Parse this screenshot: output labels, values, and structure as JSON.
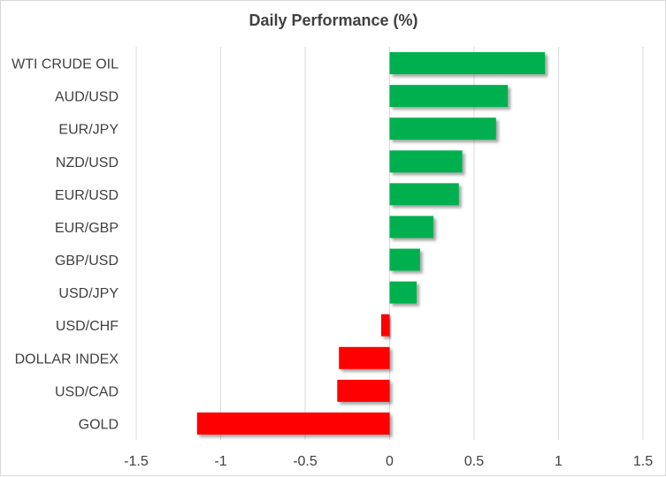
{
  "chart_data": {
    "type": "bar",
    "orientation": "horizontal",
    "title": "Daily Performance (%)",
    "xlabel": "",
    "ylabel": "",
    "xlim": [
      -1.5,
      1.5
    ],
    "xticks": [
      -1.5,
      -1,
      -0.5,
      0,
      0.5,
      1,
      1.5
    ],
    "xtick_labels": [
      "-1.5",
      "-1",
      "-0.5",
      "0",
      "0.5",
      "1",
      "1.5"
    ],
    "grid": true,
    "categories": [
      "WTI CRUDE OIL",
      "AUD/USD",
      "EUR/JPY",
      "NZD/USD",
      "EUR/USD",
      "EUR/GBP",
      "GBP/USD",
      "USD/JPY",
      "USD/CHF",
      "DOLLAR INDEX",
      "USD/CAD",
      "GOLD"
    ],
    "values": [
      0.92,
      0.7,
      0.63,
      0.43,
      0.41,
      0.26,
      0.18,
      0.16,
      -0.05,
      -0.3,
      -0.31,
      -1.14
    ],
    "colors": {
      "positive": "#00b050",
      "negative": "#ff0000",
      "grid": "#d9d9d9",
      "text": "#404040"
    }
  }
}
